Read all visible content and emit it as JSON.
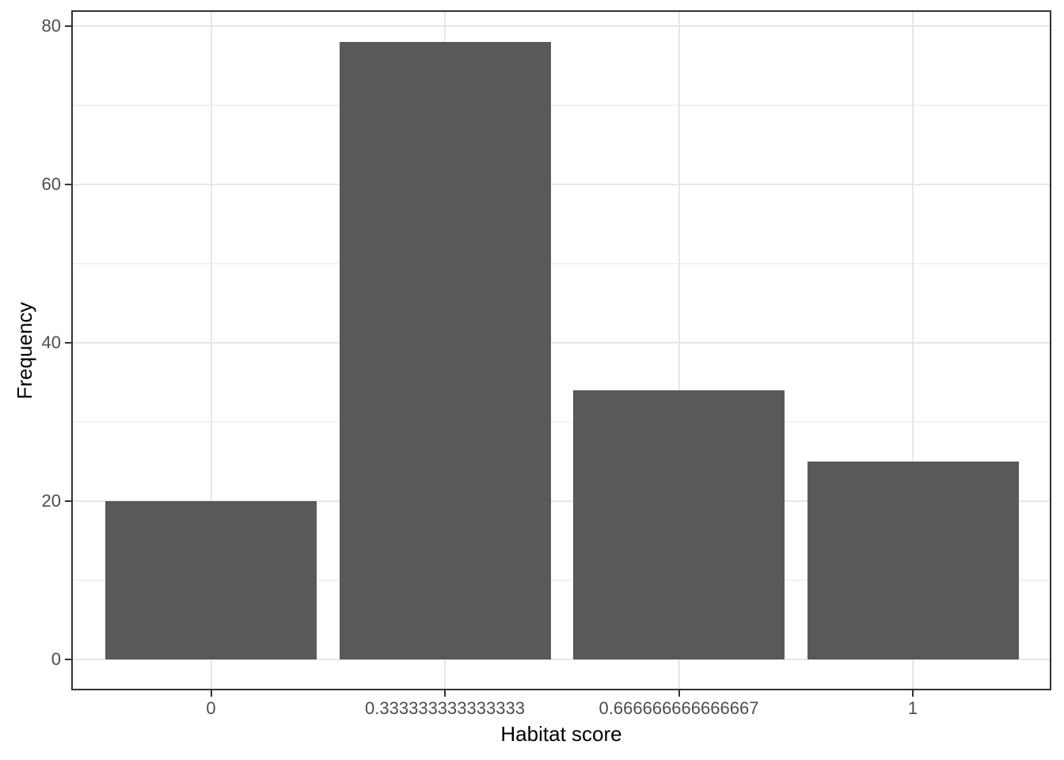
{
  "chart_data": {
    "type": "bar",
    "title": "",
    "xlabel": "Habitat score",
    "ylabel": "Frequency",
    "categories": [
      "0",
      "0.333333333333333",
      "0.666666666666667",
      "1"
    ],
    "values": [
      20,
      78,
      34,
      25
    ],
    "x_numeric": [
      0,
      0.333333333333333,
      0.666666666666667,
      1
    ],
    "ylim": [
      0,
      80
    ],
    "y_major_tick_labels": [
      "0",
      "20",
      "40",
      "60",
      "80"
    ],
    "y_major_tick_values": [
      0,
      20,
      40,
      60,
      80
    ],
    "y_minor_tick_values": [
      10,
      30,
      50,
      70
    ],
    "grid": "horizontal major and minor gridlines; vertical major gridlines at bar centers",
    "legend": "none",
    "colors": {
      "bar_fill": "#595959",
      "panel_border": "#333333",
      "grid_major": "#E7E7E7",
      "grid_minor": "#F2F2F2",
      "tick_mark": "#333333",
      "tick_label": "#4D4D4D",
      "axis_title": "#000000",
      "background": "#FFFFFF"
    }
  }
}
